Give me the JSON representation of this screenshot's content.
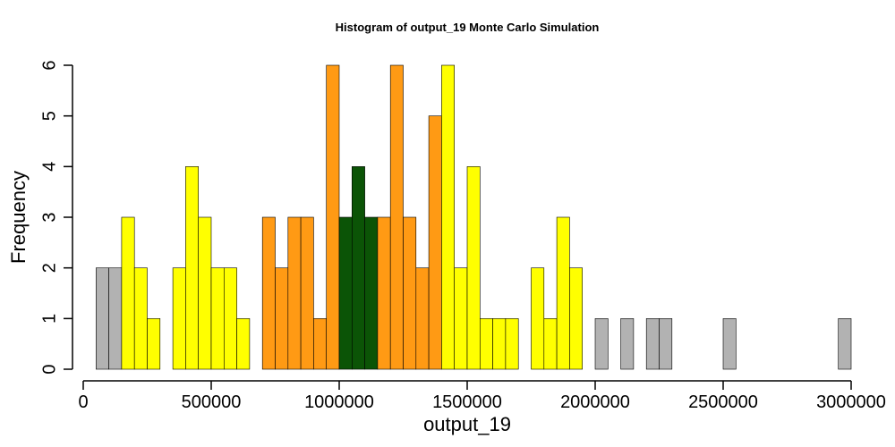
{
  "chart_data": {
    "type": "bar",
    "title": "Histogram of  output_19  Monte Carlo Simulation",
    "xlabel": "output_19",
    "ylabel": "Frequency",
    "xlim": [
      0,
      3000000
    ],
    "ylim": [
      0,
      6
    ],
    "xticks": [
      0,
      500000,
      1000000,
      1500000,
      2000000,
      2500000,
      3000000
    ],
    "xtick_labels": [
      "0",
      "500000",
      "1000000",
      "1500000",
      "2000000",
      "2500000",
      "3000000"
    ],
    "yticks": [
      0,
      1,
      2,
      3,
      4,
      5,
      6
    ],
    "ytick_labels": [
      "0",
      "1",
      "2",
      "3",
      "4",
      "5",
      "6"
    ],
    "bin_start": 50000,
    "bin_width": 50000,
    "counts": [
      2,
      2,
      3,
      2,
      1,
      0,
      2,
      4,
      3,
      2,
      2,
      1,
      0,
      3,
      2,
      3,
      3,
      1,
      6,
      3,
      4,
      3,
      3,
      6,
      3,
      2,
      5,
      6,
      2,
      4,
      1,
      1,
      1,
      0,
      2,
      1,
      3,
      2,
      0,
      1,
      0,
      1,
      0,
      1,
      1,
      0,
      0,
      0,
      0,
      1,
      0,
      0,
      0,
      0,
      0,
      0,
      0,
      0,
      1
    ],
    "colors": {
      "gray": "#b2b2b2",
      "yellow": "#ffff00",
      "orange": "#ff9a14",
      "green": "#0b5406"
    },
    "bar_colors": [
      "gray",
      "gray",
      "yellow",
      "yellow",
      "yellow",
      "yellow",
      "yellow",
      "yellow",
      "yellow",
      "yellow",
      "yellow",
      "yellow",
      "orange",
      "orange",
      "orange",
      "orange",
      "orange",
      "orange",
      "orange",
      "green",
      "green",
      "green",
      "orange",
      "orange",
      "orange",
      "orange",
      "orange",
      "yellow",
      "yellow",
      "yellow",
      "yellow",
      "yellow",
      "yellow",
      "yellow",
      "yellow",
      "yellow",
      "yellow",
      "yellow",
      "gray",
      "gray",
      "gray",
      "gray",
      "gray",
      "gray",
      "gray",
      "gray",
      "gray",
      "gray",
      "gray",
      "gray",
      "gray",
      "gray",
      "gray",
      "gray",
      "gray",
      "gray",
      "gray",
      "gray",
      "gray"
    ]
  }
}
